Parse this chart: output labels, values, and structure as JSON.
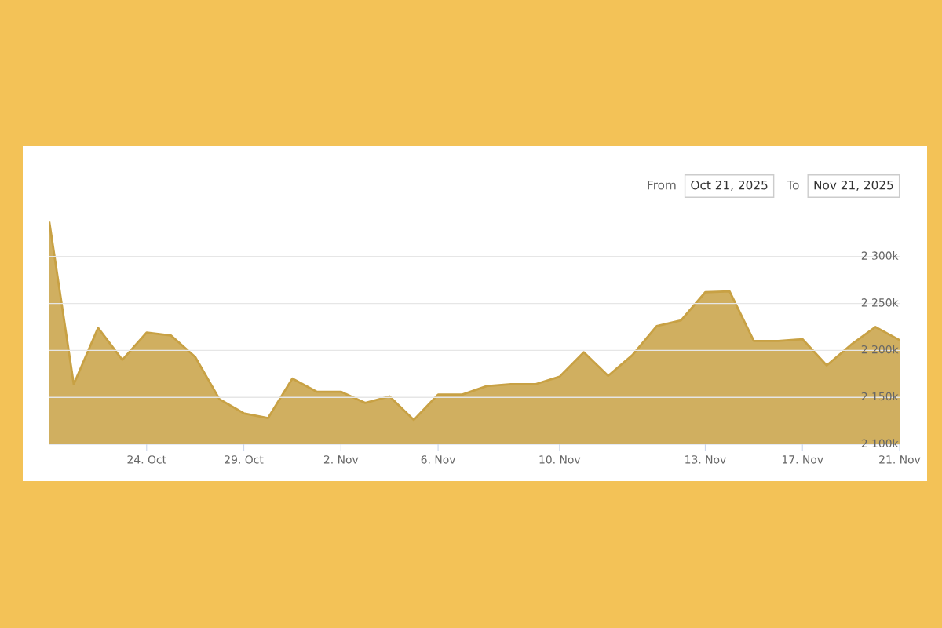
{
  "chart_data": {
    "type": "area",
    "categories": [
      null,
      null,
      null,
      null,
      "24. Oct",
      null,
      null,
      null,
      "29. Oct",
      null,
      null,
      null,
      "2. Nov",
      null,
      null,
      null,
      "6. Nov",
      null,
      null,
      null,
      null,
      "10. Nov",
      null,
      null,
      null,
      null,
      null,
      "13. Nov",
      null,
      null,
      null,
      "17. Nov",
      null,
      null,
      null,
      "21. Nov"
    ],
    "series": [
      {
        "color": "#c8a144",
        "values": [
          2336,
          2164,
          2224,
          2190,
          2219,
          2216,
          2193,
          2148,
          2133,
          2128,
          2170,
          2156,
          2156,
          2144,
          2151,
          2126,
          2153,
          2153,
          2162,
          2164,
          2164,
          2172,
          2198,
          2173,
          2195,
          2226,
          2232,
          2262,
          2263,
          2210,
          2210,
          2212,
          2184,
          2206,
          2225,
          2211
        ]
      }
    ],
    "ylim": [
      2100,
      2350
    ],
    "yticks": [
      {
        "value": 2100,
        "label": "2 100k"
      },
      {
        "value": 2150,
        "label": "2 150k"
      },
      {
        "value": 2200,
        "label": "2 200k"
      },
      {
        "value": 2250,
        "label": "2 250k"
      },
      {
        "value": 2300,
        "label": "2 300k"
      },
      {
        "value": 2350,
        "label": null
      }
    ],
    "grid": "y",
    "annotations": [
      "From",
      "Oct 21, 2025",
      "To",
      "Nov 21, 2025"
    ]
  }
}
